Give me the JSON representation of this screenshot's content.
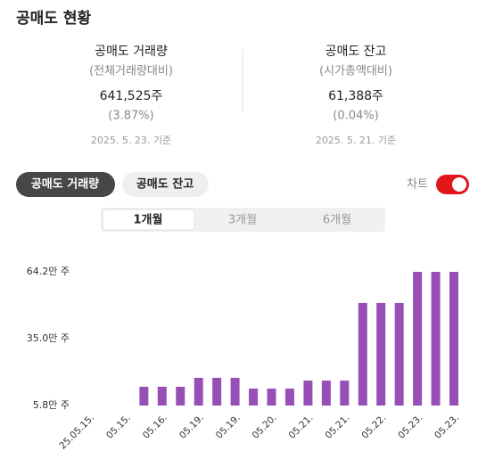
{
  "header": {
    "title": "공매도 현황"
  },
  "summary": [
    {
      "label": "공매도 거래량",
      "sub": "(전체거래량대비)",
      "amount": "641,525주",
      "ratio": "(3.87%)",
      "date": "2025. 5. 23. 기준"
    },
    {
      "label": "공매도 잔고",
      "sub": "(시가총액대비)",
      "amount": "61,388주",
      "ratio": "(0.04%)",
      "date": "2025. 5. 21. 기준"
    }
  ],
  "tabs": [
    "공매도 거래량",
    "공매도 잔고"
  ],
  "toggle": {
    "label": "차트",
    "on": true
  },
  "periods": [
    "1개월",
    "3개월",
    "6개월"
  ],
  "chart_data": {
    "type": "bar",
    "color": "#9650b5",
    "categories": [
      "25.05.15.",
      null,
      "05.15.",
      null,
      "05.16.",
      null,
      "05.19.",
      null,
      "05.19.",
      null,
      "05.20.",
      null,
      "05.21.",
      null,
      "05.21.",
      null,
      "05.22.",
      null,
      "05.23.",
      null,
      "05.23."
    ],
    "values": [
      null,
      null,
      null,
      14.0,
      14.0,
      14.0,
      17.9,
      17.9,
      17.9,
      13.2,
      13.2,
      13.2,
      16.7,
      16.7,
      16.7,
      50.6,
      50.6,
      50.6,
      64.2,
      64.2,
      64.2
    ],
    "ylim": [
      5.8,
      64.2
    ],
    "yticks": [
      {
        "value": 5.8,
        "label": "5.8만 주"
      },
      {
        "value": 35.0,
        "label": "35.0만 주"
      },
      {
        "value": 64.2,
        "label": "64.2만 주"
      }
    ],
    "grid": false
  }
}
